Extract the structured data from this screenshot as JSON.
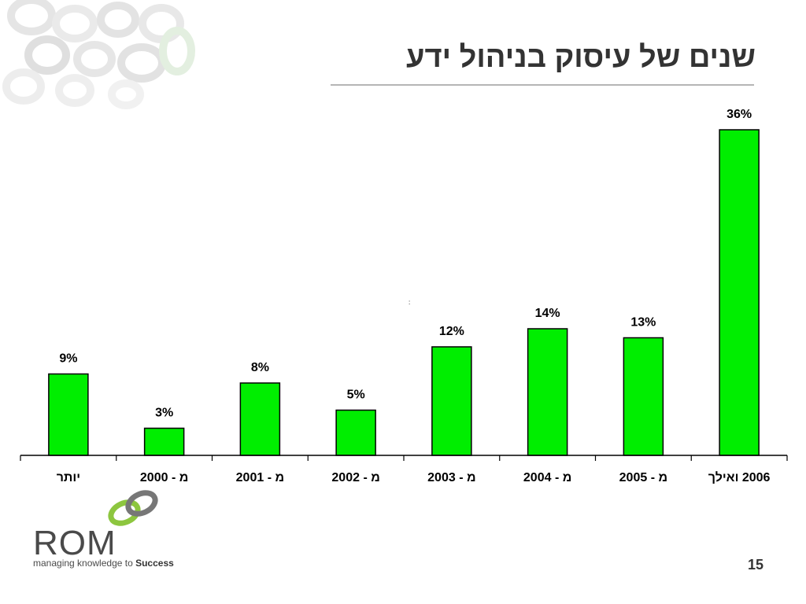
{
  "slide": {
    "title": "שנים של עיסוק בניהול ידע",
    "page_number": "15"
  },
  "brand": {
    "name": "ROM",
    "tagline_prefix": "managing knowledge to ",
    "tagline_bold": "Success"
  },
  "colors": {
    "bar": "#00ee00",
    "bar_stroke": "#000000",
    "text": "#000000",
    "logo_green": "#8dc63f",
    "logo_gray": "#777777"
  },
  "chart_data": {
    "type": "bar",
    "categories": [
      "יותר",
      "מ - 2000",
      "מ - 2001",
      "מ - 2002",
      "מ - 2003",
      "מ - 2004",
      "מ - 2005",
      "2006 ואילך"
    ],
    "values": [
      9,
      3,
      8,
      5,
      12,
      14,
      13,
      36
    ],
    "data_labels": [
      "9%",
      "3%",
      "8%",
      "5%",
      "12%",
      "14%",
      "13%",
      "36%"
    ],
    "title": "",
    "xlabel": "",
    "ylabel": "",
    "ylim": [
      0,
      40
    ],
    "grid": false,
    "legend": "none"
  }
}
